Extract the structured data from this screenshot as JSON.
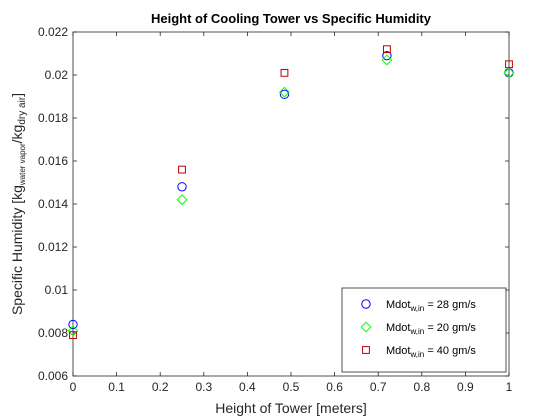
{
  "chart_data": {
    "type": "scatter",
    "title": "Height of Cooling Tower vs Specific Humidity",
    "xlabel": "Height of Tower [meters]",
    "ylabel": {
      "base": "Specific Humidity [kg",
      "sub1": "water vapor",
      "mid": "/kg",
      "sub2": "dry air",
      "end": "]"
    },
    "xlim": [
      0,
      1
    ],
    "ylim": [
      0.006,
      0.022
    ],
    "xticks": [
      "0",
      "0.1",
      "0.2",
      "0.3",
      "0.4",
      "0.5",
      "0.6",
      "0.7",
      "0.8",
      "0.9",
      "1"
    ],
    "yticks": [
      "0.006",
      "0.008",
      "0.01",
      "0.012",
      "0.014",
      "0.016",
      "0.018",
      "0.02",
      "0.022"
    ],
    "grid": false,
    "legend_position": "bottom-right",
    "series": [
      {
        "legend_prefix": "Mdot",
        "legend_sub": "w,in",
        "legend_suffix": " = 28 gm/s",
        "marker": "circle",
        "color": "#0000ff",
        "x": [
          0,
          0.25,
          0.485,
          0.72,
          1.0
        ],
        "y": [
          0.0084,
          0.0148,
          0.0191,
          0.0209,
          0.0201
        ]
      },
      {
        "legend_prefix": "Mdot",
        "legend_sub": "w,in",
        "legend_suffix": " = 20 gm/s",
        "marker": "diamond",
        "color": "#00ff00",
        "x": [
          0,
          0.25,
          0.485,
          0.72,
          1.0
        ],
        "y": [
          0.0081,
          0.0142,
          0.0192,
          0.0207,
          0.0201
        ]
      },
      {
        "legend_prefix": "Mdot",
        "legend_sub": "w,in",
        "legend_suffix": " = 40 gm/s",
        "marker": "square",
        "color": "#c00000",
        "x": [
          0,
          0.25,
          0.485,
          0.72,
          1.0
        ],
        "y": [
          0.0079,
          0.0156,
          0.0201,
          0.0212,
          0.0205
        ]
      }
    ]
  }
}
